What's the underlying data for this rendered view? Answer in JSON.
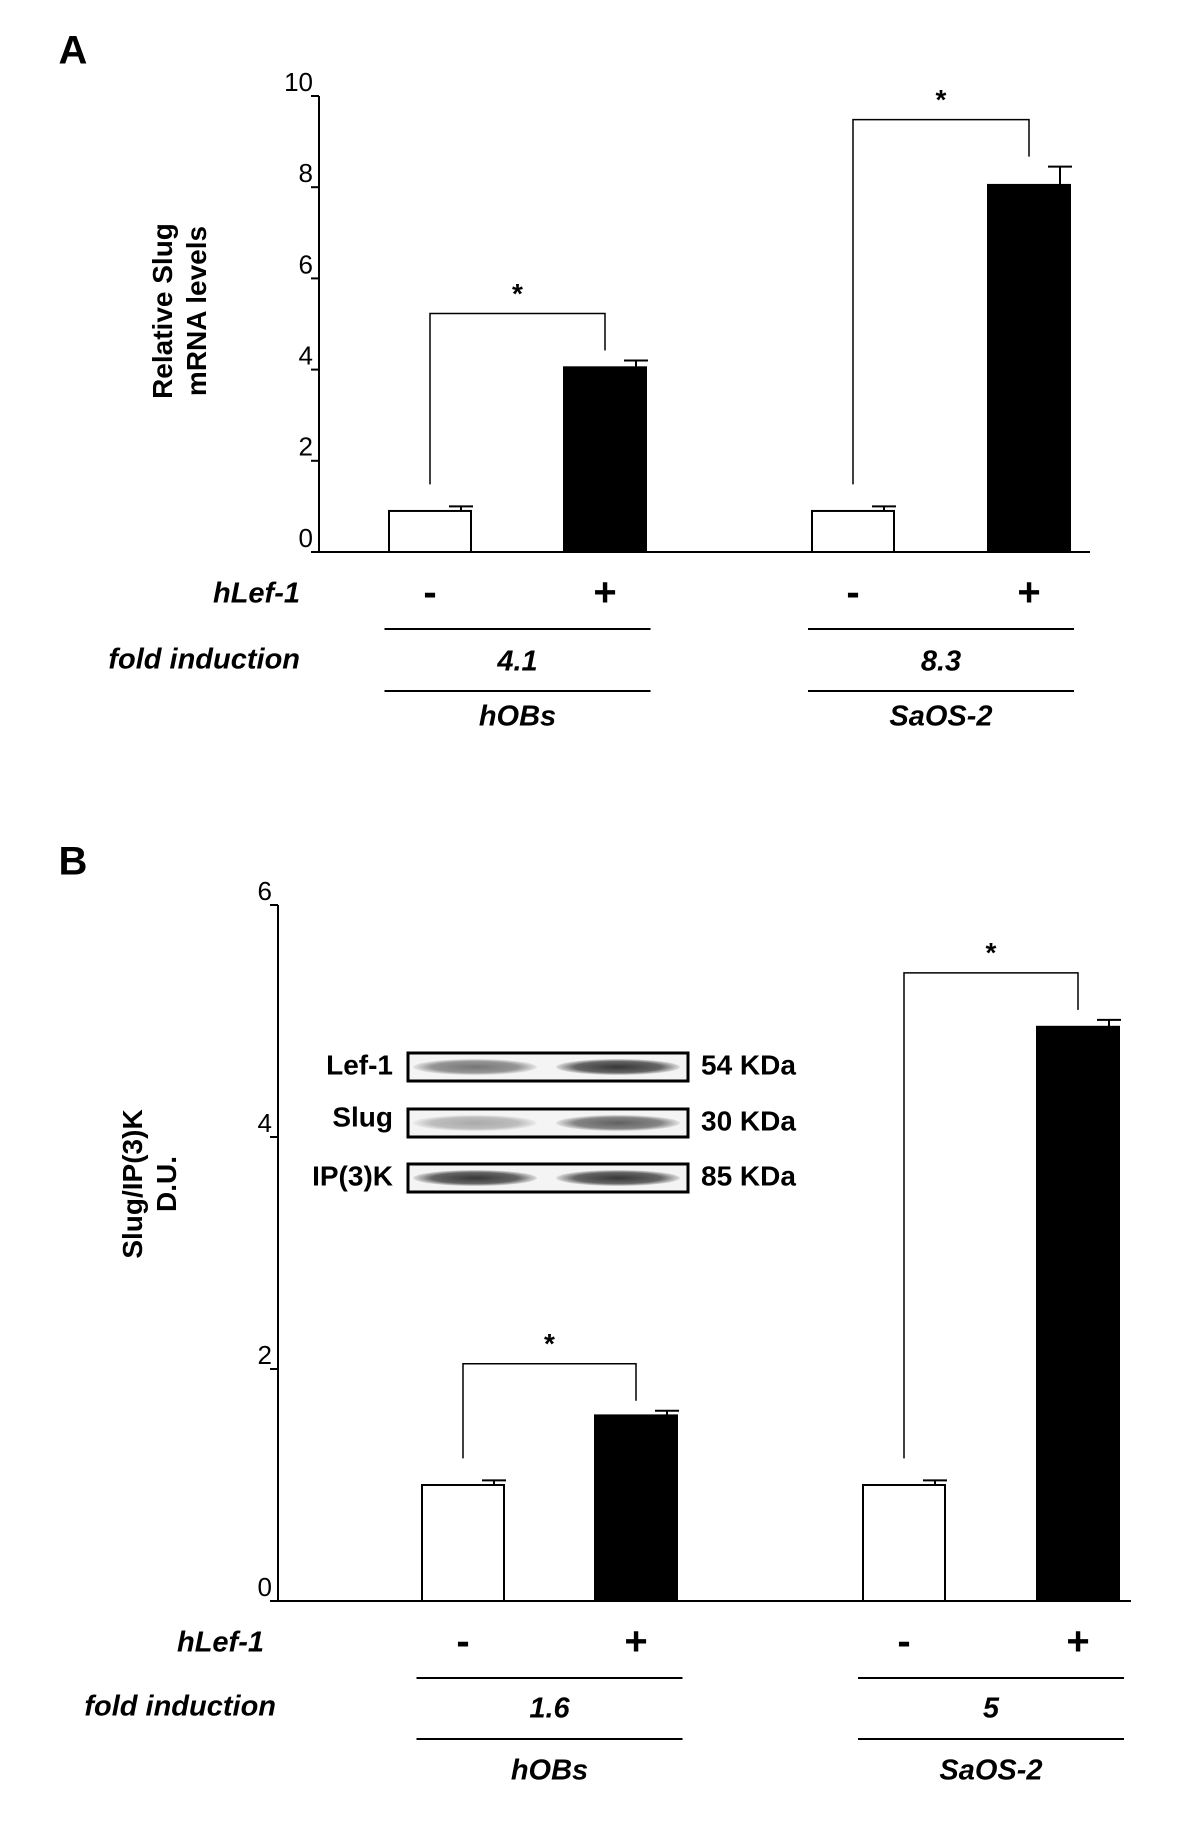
{
  "chart_data": [
    {
      "type": "bar",
      "panel": "A",
      "y_label": [
        "Relative Slug",
        "mRNA levels"
      ],
      "categories": [
        "-",
        "+",
        "-",
        "+"
      ],
      "values": [
        0.9,
        4.05,
        0.9,
        8.05
      ],
      "errors": [
        0.1,
        0.15,
        0.1,
        0.4
      ],
      "colors": [
        "#ffffff",
        "#000000",
        "#ffffff",
        "#000000"
      ],
      "ylim": [
        0,
        10
      ],
      "yticks": [
        0,
        2,
        4,
        6,
        8,
        10
      ],
      "row_labels": {
        "treatment": "hLef-1",
        "fold": "fold induction"
      },
      "groups": [
        {
          "name": "hOBs",
          "fold_induction": 4.1,
          "significance": "*"
        },
        {
          "name": "SaOS-2",
          "fold_induction": 8.3,
          "significance": "*"
        }
      ]
    },
    {
      "type": "bar",
      "panel": "B",
      "y_label": [
        "Slug/IP(3)K",
        "D.U."
      ],
      "categories": [
        "-",
        "+",
        "-",
        "+"
      ],
      "values": [
        1.0,
        1.6,
        1.0,
        4.95
      ],
      "errors": [
        0.04,
        0.04,
        0.04,
        0.06
      ],
      "colors": [
        "#ffffff",
        "#000000",
        "#ffffff",
        "#000000"
      ],
      "ylim": [
        0,
        6
      ],
      "yticks": [
        0,
        2,
        4,
        6
      ],
      "row_labels": {
        "treatment": "hLef-1",
        "fold": "fold induction"
      },
      "groups": [
        {
          "name": "hOBs",
          "fold_induction": 1.6,
          "significance": "*"
        },
        {
          "name": "SaOS-2",
          "fold_induction": 5,
          "significance": "*"
        }
      ],
      "inset": {
        "proteins": [
          "Lef-1",
          "Slug",
          "IP(3)K"
        ],
        "sizes": [
          "54 KDa",
          "30 KDa",
          "85 KDa"
        ]
      }
    }
  ]
}
